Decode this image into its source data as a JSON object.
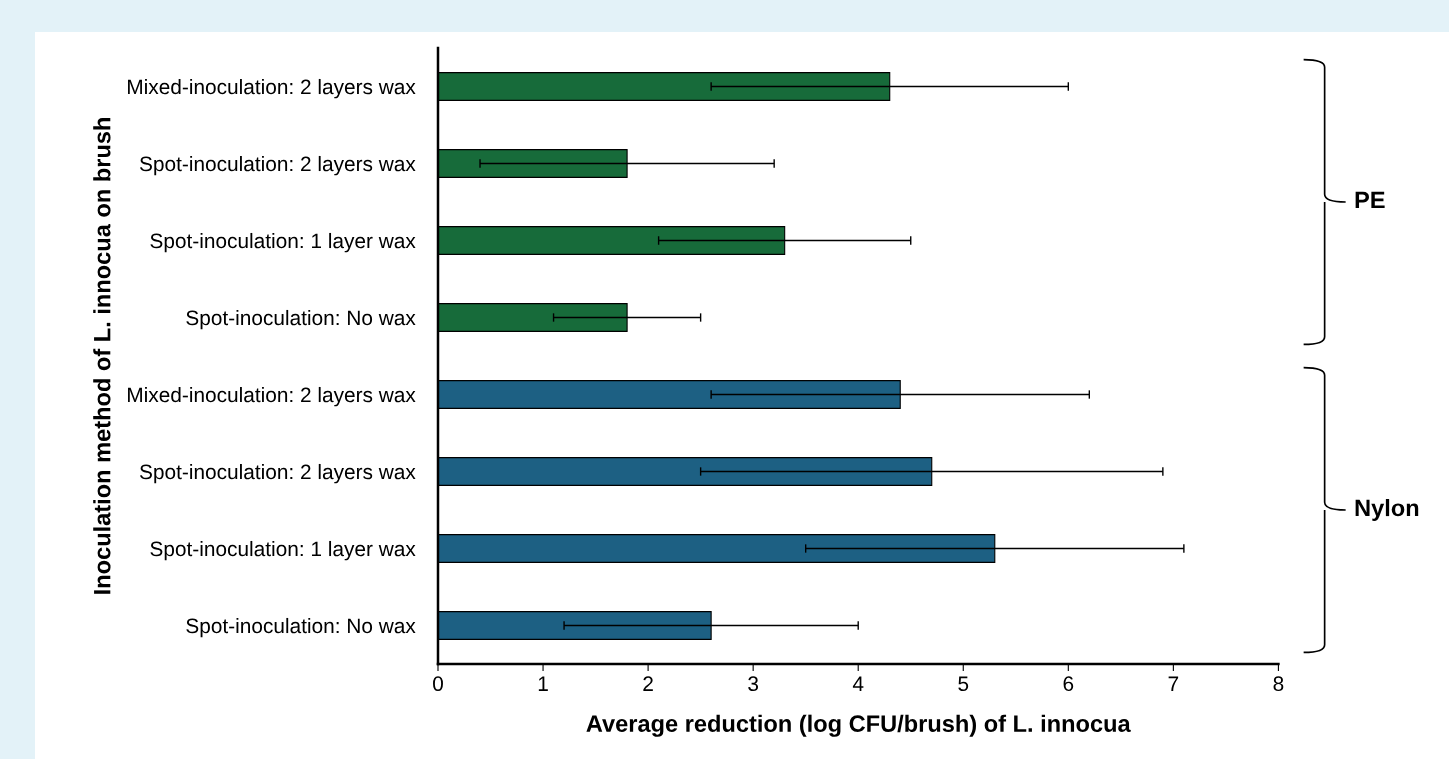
{
  "chart_data": {
    "type": "bar",
    "orientation": "horizontal",
    "categories": [
      "Mixed-inoculation: 2 layers wax",
      "Spot-inoculation: 2 layers wax",
      "Spot-inoculation: 1 layer wax",
      "Spot-inoculation: No wax",
      "Mixed-inoculation: 2 layers wax",
      "Spot-inoculation: 2 layers wax",
      "Spot-inoculation: 1 layer wax",
      "Spot-inoculation: No wax"
    ],
    "values": [
      4.3,
      1.8,
      3.3,
      1.8,
      4.4,
      4.7,
      5.3,
      2.6
    ],
    "errors": [
      1.7,
      1.4,
      1.2,
      0.7,
      1.8,
      2.2,
      1.8,
      1.4
    ],
    "colors": [
      "#176b3a",
      "#176b3a",
      "#176b3a",
      "#176b3a",
      "#1d6083",
      "#1d6083",
      "#1d6083",
      "#1d6083"
    ],
    "xlim": [
      0,
      8
    ],
    "xticks": [
      0,
      1,
      2,
      3,
      4,
      5,
      6,
      7,
      8
    ],
    "xlabel": "Average reduction (log CFU/brush) of L. innocua",
    "ylabel": "Inoculation method of L. innocua on brush",
    "annotations": [
      "PE",
      "Nylon"
    ],
    "grid": false
  }
}
